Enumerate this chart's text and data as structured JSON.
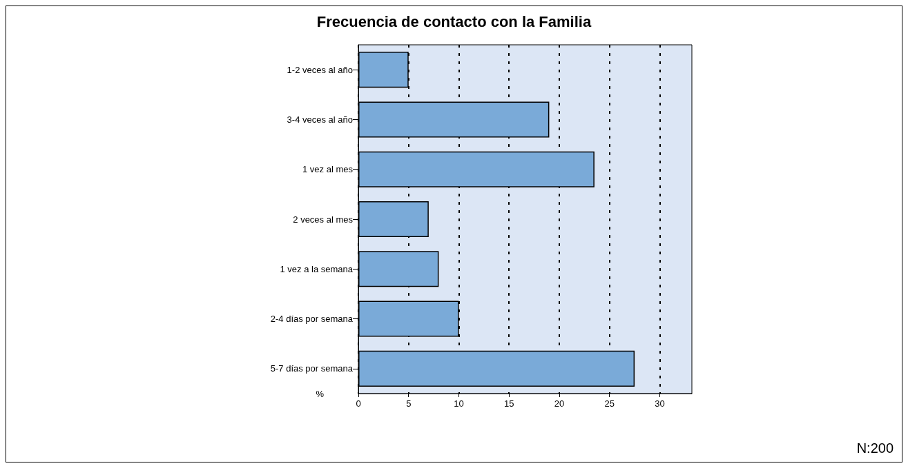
{
  "chart_data": {
    "type": "bar",
    "orientation": "horizontal",
    "title": "Frecuencia de contacto con la Familia",
    "xlabel": "%",
    "categories": [
      "1-2 veces al año",
      "3-4 veces al año",
      "1 vez al mes",
      "2 veces al mes",
      "1 vez a la semana",
      "2-4 días por semana",
      "5-7 días por semana"
    ],
    "values": [
      5,
      19,
      23.5,
      7,
      8,
      10,
      27.5
    ],
    "color": "#7aaad8",
    "xlim": [
      0,
      33.2
    ],
    "xticks": [
      0,
      5,
      10,
      15,
      20,
      25,
      30
    ],
    "grid": "x",
    "annotations": [
      "N:200"
    ]
  }
}
